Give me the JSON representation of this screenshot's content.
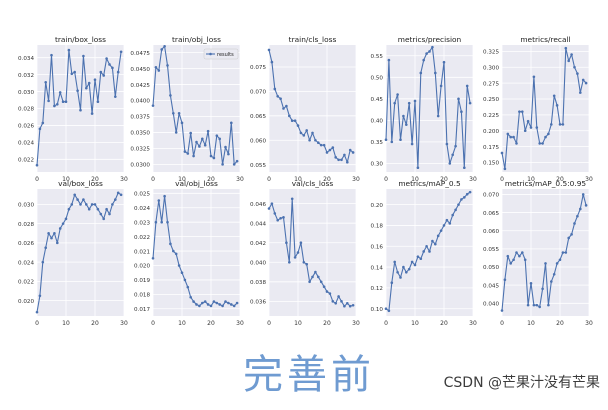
{
  "caption": "完善前",
  "watermark": "CSDN @芒果汁没有芒果",
  "colors": {
    "panel_bg": "#eaeaf2",
    "line": "#4c72b0",
    "grid": "#ffffff",
    "tick": "#333333"
  },
  "chart_data": [
    {
      "type": "line",
      "title": "train/box_loss",
      "xlim": [
        0,
        30
      ],
      "ylim": [
        0.0205,
        0.0355
      ],
      "xticks": [
        0,
        10,
        20,
        30
      ],
      "yticks": [
        0.022,
        0.024,
        0.026,
        0.028,
        0.03,
        0.032,
        0.034
      ],
      "ytick_labels": [
        "0.022",
        "0.024",
        "0.026",
        "0.028",
        "0.030",
        "0.032",
        "0.034"
      ],
      "x": [
        0,
        1,
        2,
        3,
        4,
        5,
        6,
        7,
        8,
        9,
        10,
        11,
        12,
        13,
        14,
        15,
        16,
        17,
        18,
        19,
        20,
        21,
        22,
        23,
        24,
        25,
        26,
        27,
        28,
        29
      ],
      "y": [
        0.0213,
        0.0256,
        0.0263,
        0.0311,
        0.0289,
        0.0343,
        0.0283,
        0.0285,
        0.0299,
        0.0288,
        0.0288,
        0.0349,
        0.0321,
        0.0323,
        0.0301,
        0.0278,
        0.0342,
        0.0304,
        0.031,
        0.0274,
        0.0314,
        0.0288,
        0.0323,
        0.0319,
        0.0339,
        0.0332,
        0.0328,
        0.0294,
        0.0323,
        0.0347
      ]
    },
    {
      "type": "line",
      "title": "train/obj_loss",
      "xlim": [
        0,
        30
      ],
      "ylim": [
        0.0288,
        0.0487
      ],
      "xticks": [
        0,
        10,
        20,
        30
      ],
      "yticks": [
        0.03,
        0.0325,
        0.035,
        0.0375,
        0.04,
        0.0425,
        0.045,
        0.0475
      ],
      "ytick_labels": [
        "0.0300",
        "0.0325",
        "0.0350",
        "0.0375",
        "0.0400",
        "0.0425",
        "0.0450",
        "0.0475"
      ],
      "legend": "results",
      "legend_loc": "upper right",
      "x": [
        0,
        1,
        2,
        3,
        4,
        5,
        6,
        7,
        8,
        9,
        10,
        11,
        12,
        13,
        14,
        15,
        16,
        17,
        18,
        19,
        20,
        21,
        22,
        23,
        24,
        25,
        26,
        27,
        28,
        29
      ],
      "y": [
        0.0392,
        0.0452,
        0.0447,
        0.048,
        0.0485,
        0.0455,
        0.0408,
        0.038,
        0.035,
        0.038,
        0.0365,
        0.032,
        0.0317,
        0.0349,
        0.0313,
        0.0335,
        0.0328,
        0.034,
        0.033,
        0.0352,
        0.0313,
        0.031,
        0.0345,
        0.034,
        0.03,
        0.0327,
        0.0316,
        0.0365,
        0.03,
        0.0305
      ]
    },
    {
      "type": "line",
      "title": "train/cls_loss",
      "xlim": [
        0,
        30
      ],
      "ylim": [
        0.0535,
        0.0795
      ],
      "xticks": [
        0,
        10,
        20,
        30
      ],
      "yticks": [
        0.055,
        0.06,
        0.065,
        0.07,
        0.075
      ],
      "ytick_labels": [
        "0.055",
        "0.060",
        "0.065",
        "0.070",
        "0.075"
      ],
      "x": [
        0,
        1,
        2,
        3,
        4,
        5,
        6,
        7,
        8,
        9,
        10,
        11,
        12,
        13,
        14,
        15,
        16,
        17,
        18,
        19,
        20,
        21,
        22,
        23,
        24,
        25,
        26,
        27,
        28,
        29
      ],
      "y": [
        0.0785,
        0.076,
        0.0705,
        0.069,
        0.0685,
        0.0665,
        0.067,
        0.065,
        0.064,
        0.064,
        0.063,
        0.0615,
        0.061,
        0.062,
        0.06,
        0.0615,
        0.06,
        0.0595,
        0.059,
        0.059,
        0.0575,
        0.058,
        0.0585,
        0.0565,
        0.056,
        0.056,
        0.057,
        0.0555,
        0.058,
        0.0575
      ]
    },
    {
      "type": "line",
      "title": "metrics/precision",
      "xlim": [
        0,
        30
      ],
      "ylim": [
        0.28,
        0.575
      ],
      "xticks": [
        0,
        10,
        20,
        30
      ],
      "yticks": [
        0.3,
        0.35,
        0.4,
        0.45,
        0.5,
        0.55
      ],
      "ytick_labels": [
        "0.30",
        "0.35",
        "0.40",
        "0.45",
        "0.50",
        "0.55"
      ],
      "x": [
        0,
        1,
        2,
        3,
        4,
        5,
        6,
        7,
        8,
        9,
        10,
        11,
        12,
        13,
        14,
        15,
        16,
        17,
        18,
        19,
        20,
        21,
        22,
        23,
        24,
        25,
        26,
        27,
        28,
        29
      ],
      "y": [
        0.355,
        0.54,
        0.35,
        0.44,
        0.46,
        0.355,
        0.41,
        0.39,
        0.44,
        0.345,
        0.445,
        0.29,
        0.51,
        0.54,
        0.555,
        0.56,
        0.57,
        0.51,
        0.41,
        0.48,
        0.535,
        0.345,
        0.3,
        0.32,
        0.34,
        0.45,
        0.42,
        0.29,
        0.48,
        0.44
      ]
    },
    {
      "type": "line",
      "title": "metrics/recall",
      "xlim": [
        0,
        30
      ],
      "ylim": [
        0.135,
        0.335
      ],
      "xticks": [
        0,
        10,
        20,
        30
      ],
      "yticks": [
        0.15,
        0.175,
        0.2,
        0.225,
        0.25,
        0.275,
        0.3,
        0.325
      ],
      "ytick_labels": [
        "0.150",
        "0.175",
        "0.200",
        "0.225",
        "0.250",
        "0.275",
        "0.300",
        "0.325"
      ],
      "x": [
        0,
        1,
        2,
        3,
        4,
        5,
        6,
        7,
        8,
        9,
        10,
        11,
        12,
        13,
        14,
        15,
        16,
        17,
        18,
        19,
        20,
        21,
        22,
        23,
        24,
        25,
        26,
        27,
        28,
        29
      ],
      "y": [
        0.165,
        0.14,
        0.195,
        0.19,
        0.19,
        0.18,
        0.23,
        0.23,
        0.2,
        0.215,
        0.205,
        0.285,
        0.205,
        0.18,
        0.18,
        0.19,
        0.195,
        0.21,
        0.255,
        0.24,
        0.21,
        0.21,
        0.33,
        0.31,
        0.32,
        0.3,
        0.29,
        0.26,
        0.28,
        0.275
      ]
    },
    {
      "type": "line",
      "title": "val/box_loss",
      "xlim": [
        0,
        30
      ],
      "ylim": [
        0.0184,
        0.0316
      ],
      "xticks": [
        0,
        10,
        20,
        30
      ],
      "yticks": [
        0.02,
        0.022,
        0.024,
        0.026,
        0.028,
        0.03
      ],
      "ytick_labels": [
        "0.020",
        "0.022",
        "0.024",
        "0.026",
        "0.028",
        "0.030"
      ],
      "x": [
        0,
        1,
        2,
        3,
        4,
        5,
        6,
        7,
        8,
        9,
        10,
        11,
        12,
        13,
        14,
        15,
        16,
        17,
        18,
        19,
        20,
        21,
        22,
        23,
        24,
        25,
        26,
        27,
        28,
        29
      ],
      "y": [
        0.0188,
        0.0205,
        0.024,
        0.0255,
        0.027,
        0.0265,
        0.027,
        0.026,
        0.0275,
        0.028,
        0.0285,
        0.0295,
        0.03,
        0.031,
        0.0305,
        0.03,
        0.0305,
        0.03,
        0.0295,
        0.03,
        0.03,
        0.0295,
        0.029,
        0.0285,
        0.0295,
        0.029,
        0.03,
        0.0305,
        0.0312,
        0.031
      ]
    },
    {
      "type": "line",
      "title": "val/obj_loss",
      "xlim": [
        0,
        30
      ],
      "ylim": [
        0.0165,
        0.0253
      ],
      "xticks": [
        0,
        10,
        20,
        30
      ],
      "yticks": [
        0.017,
        0.018,
        0.019,
        0.02,
        0.021,
        0.022,
        0.023,
        0.024,
        0.025
      ],
      "ytick_labels": [
        "0.017",
        "0.018",
        "0.019",
        "0.020",
        "0.021",
        "0.022",
        "0.023",
        "0.024",
        "0.025"
      ],
      "x": [
        0,
        1,
        2,
        3,
        4,
        5,
        6,
        7,
        8,
        9,
        10,
        11,
        12,
        13,
        14,
        15,
        16,
        17,
        18,
        19,
        20,
        21,
        22,
        23,
        24,
        25,
        26,
        27,
        28,
        29
      ],
      "y": [
        0.0205,
        0.023,
        0.0245,
        0.023,
        0.0248,
        0.023,
        0.0215,
        0.021,
        0.0208,
        0.02,
        0.0195,
        0.019,
        0.0185,
        0.0178,
        0.0175,
        0.0173,
        0.0172,
        0.0174,
        0.0175,
        0.0173,
        0.0172,
        0.0175,
        0.0174,
        0.0173,
        0.0172,
        0.0175,
        0.0174,
        0.0173,
        0.0172,
        0.0174
      ]
    },
    {
      "type": "line",
      "title": "val/cls_loss",
      "xlim": [
        0,
        30
      ],
      "ylim": [
        0.0345,
        0.0475
      ],
      "xticks": [
        0,
        10,
        20,
        30
      ],
      "yticks": [
        0.036,
        0.038,
        0.04,
        0.042,
        0.044,
        0.046
      ],
      "ytick_labels": [
        "0.036",
        "0.038",
        "0.040",
        "0.042",
        "0.044",
        "0.046"
      ],
      "x": [
        0,
        1,
        2,
        3,
        4,
        5,
        6,
        7,
        8,
        9,
        10,
        11,
        12,
        13,
        14,
        15,
        16,
        17,
        18,
        19,
        20,
        21,
        22,
        23,
        24,
        25,
        26,
        27,
        28,
        29
      ],
      "y": [
        0.0455,
        0.046,
        0.045,
        0.0443,
        0.0445,
        0.0446,
        0.042,
        0.04,
        0.0465,
        0.0405,
        0.041,
        0.042,
        0.04,
        0.0398,
        0.038,
        0.0385,
        0.039,
        0.0385,
        0.038,
        0.0375,
        0.037,
        0.0368,
        0.036,
        0.0358,
        0.0365,
        0.036,
        0.0355,
        0.0358,
        0.0355,
        0.0356
      ]
    },
    {
      "type": "line",
      "title": "metrics/mAP_0.5",
      "xlim": [
        0,
        30
      ],
      "ylim": [
        0.093,
        0.215
      ],
      "xticks": [
        0,
        10,
        20,
        30
      ],
      "yticks": [
        0.1,
        0.12,
        0.14,
        0.16,
        0.18,
        0.2
      ],
      "ytick_labels": [
        "0.10",
        "0.12",
        "0.14",
        "0.16",
        "0.18",
        "0.20"
      ],
      "x": [
        0,
        1,
        2,
        3,
        4,
        5,
        6,
        7,
        8,
        9,
        10,
        11,
        12,
        13,
        14,
        15,
        16,
        17,
        18,
        19,
        20,
        21,
        22,
        23,
        24,
        25,
        26,
        27,
        28,
        29
      ],
      "y": [
        0.1,
        0.098,
        0.125,
        0.145,
        0.135,
        0.13,
        0.14,
        0.135,
        0.138,
        0.145,
        0.142,
        0.15,
        0.148,
        0.155,
        0.16,
        0.155,
        0.165,
        0.162,
        0.17,
        0.175,
        0.18,
        0.185,
        0.182,
        0.19,
        0.195,
        0.2,
        0.205,
        0.207,
        0.21,
        0.212
      ]
    },
    {
      "type": "line",
      "title": "metrics/mAP_0.5:0.95",
      "xlim": [
        0,
        30
      ],
      "ylim": [
        0.0365,
        0.0715
      ],
      "xticks": [
        0,
        10,
        20,
        30
      ],
      "yticks": [
        0.04,
        0.045,
        0.05,
        0.055,
        0.06,
        0.065,
        0.07
      ],
      "ytick_labels": [
        "0.040",
        "0.045",
        "0.050",
        "0.055",
        "0.060",
        "0.065",
        "0.070"
      ],
      "x": [
        0,
        1,
        2,
        3,
        4,
        5,
        6,
        7,
        8,
        9,
        10,
        11,
        12,
        13,
        14,
        15,
        16,
        17,
        18,
        19,
        20,
        21,
        22,
        23,
        24,
        25,
        26,
        27,
        28,
        29
      ],
      "y": [
        0.038,
        0.0465,
        0.053,
        0.051,
        0.052,
        0.054,
        0.053,
        0.054,
        0.052,
        0.0395,
        0.0455,
        0.0395,
        0.0395,
        0.039,
        0.044,
        0.051,
        0.0395,
        0.046,
        0.048,
        0.051,
        0.052,
        0.054,
        0.054,
        0.058,
        0.059,
        0.062,
        0.064,
        0.066,
        0.07,
        0.067
      ]
    }
  ]
}
